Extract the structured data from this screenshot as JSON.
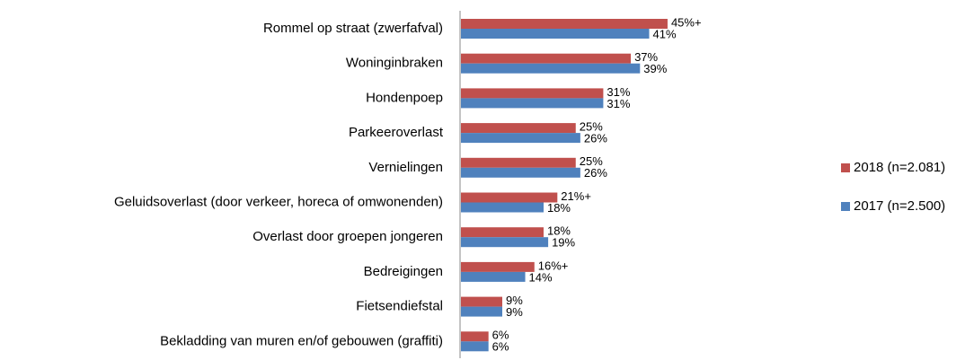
{
  "chart_data": {
    "type": "bar",
    "orientation": "horizontal",
    "categories": [
      "Rommel op straat (zwerfafval)",
      "Woninginbraken",
      "Hondenpoep",
      "Parkeeroverlast",
      "Vernielingen",
      "Geluidsoverlast (door verkeer, horeca of omwonenden)",
      "Overlast door groepen jongeren",
      "Bedreigingen",
      "Fietsendiefstal",
      "Bekladding van muren en/of gebouwen (graffiti)"
    ],
    "series": [
      {
        "name": "2018 (n=2.081)",
        "color": "#c0504d",
        "values": [
          45,
          37,
          31,
          25,
          25,
          21,
          18,
          16,
          9,
          6
        ],
        "value_labels": [
          "45%+",
          "37%",
          "31%",
          "25%",
          "25%",
          "21%+",
          "18%",
          "16%+",
          "9%",
          "6%"
        ]
      },
      {
        "name": "2017 (n=2.500)",
        "color": "#4f81bd",
        "values": [
          41,
          39,
          31,
          26,
          26,
          18,
          19,
          14,
          9,
          6
        ],
        "value_labels": [
          "41%",
          "39%",
          "31%",
          "26%",
          "26%",
          "18%",
          "19%",
          "14%",
          "9%",
          "6%"
        ]
      }
    ],
    "legend": "right"
  }
}
